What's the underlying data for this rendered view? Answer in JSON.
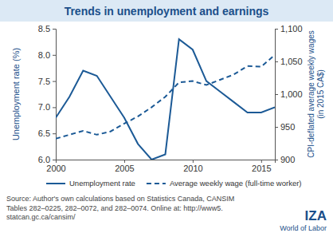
{
  "chart_data": {
    "type": "line",
    "title": "Trends in unemployment and earnings",
    "x": [
      2000,
      2001,
      2002,
      2003,
      2004,
      2005,
      2006,
      2007,
      2008,
      2009,
      2010,
      2011,
      2012,
      2013,
      2014,
      2015,
      2016
    ],
    "xlim": [
      2000,
      2016
    ],
    "xticks": [
      2000,
      2005,
      2010,
      2015
    ],
    "ylabel": "Unemployment rate (%)",
    "ylim": [
      6,
      8.5
    ],
    "yticks": [
      {
        "value": 6,
        "label": "6.0"
      },
      {
        "value": 6.5,
        "label": "6.5"
      },
      {
        "value": 7,
        "label": "7.0"
      },
      {
        "value": 7.5,
        "label": "7.5"
      },
      {
        "value": 8,
        "label": "8.0"
      },
      {
        "value": 8.5,
        "label": "8.5"
      }
    ],
    "y2label": [
      "CPI-deflated average weekly wages",
      "(in 2015 CA$)"
    ],
    "y2lim": [
      900,
      1100
    ],
    "y2ticks": [
      900,
      950,
      {
        "value": 1000,
        "label": "1,000"
      },
      {
        "value": 1050,
        "label": "1,050"
      },
      {
        "value": 1100,
        "label": "1,100"
      }
    ],
    "series": [
      {
        "name": "Unemployment rate",
        "color": "#1c5a96",
        "line_style": "solid",
        "values": [
          6.8,
          7.2,
          7.7,
          7.6,
          7.2,
          6.8,
          6.3,
          6.0,
          6.1,
          8.3,
          8.1,
          7.5,
          7.3,
          7.1,
          6.9,
          6.9,
          7.0
        ]
      },
      {
        "name": "Average weekly wage (full-time worker)",
        "color": "#1c5a96",
        "line_style": "dashed",
        "axis": "y2",
        "values": [
          932,
          938,
          944,
          938,
          943,
          955,
          966,
          980,
          996,
          1018,
          1020,
          1014,
          1022,
          1030,
          1043,
          1042,
          1060
        ]
      }
    ],
    "legend": "bottom",
    "grid": false,
    "source": [
      "Source: Author's own calculations based on Statistics Canada, CANSIM",
      "Tables 282–0225, 282–0072, and 282–0074. Online at: http://www5.",
      "statcan.gc.ca/cansim/"
    ],
    "publisher": {
      "name": "IZA",
      "subtitle": "World of Labor"
    }
  }
}
